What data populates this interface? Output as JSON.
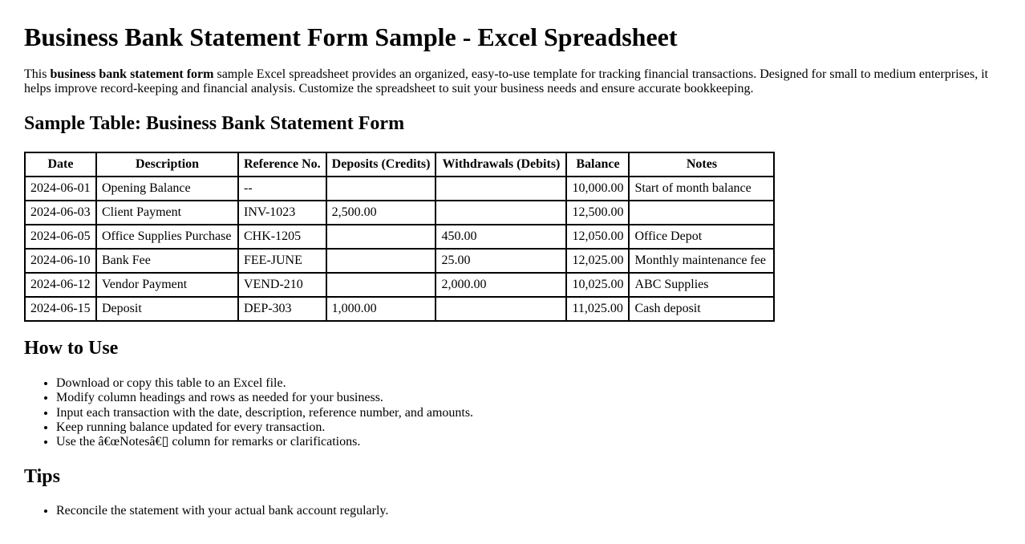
{
  "page_title": "Business Bank Statement Form Sample - Excel Spreadsheet",
  "intro": {
    "pre": "This ",
    "bold": "business bank statement form",
    "post": " sample Excel spreadsheet provides an organized, easy-to-use template for tracking financial transactions. Designed for small to medium enterprises, it helps improve record-keeping and financial analysis. Customize the spreadsheet to suit your business needs and ensure accurate bookkeeping."
  },
  "sample_table": {
    "heading": "Sample Table: Business Bank Statement Form",
    "columns": [
      "Date",
      "Description",
      "Reference No.",
      "Deposits (Credits)",
      "Withdrawals (Debits)",
      "Balance",
      "Notes"
    ],
    "rows": [
      [
        "2024-06-01",
        "Opening Balance",
        "--",
        "",
        "",
        "10,000.00",
        "Start of month balance"
      ],
      [
        "2024-06-03",
        "Client Payment",
        "INV-1023",
        "2,500.00",
        "",
        "12,500.00",
        ""
      ],
      [
        "2024-06-05",
        "Office Supplies Purchase",
        "CHK-1205",
        "",
        "450.00",
        "12,050.00",
        "Office Depot"
      ],
      [
        "2024-06-10",
        "Bank Fee",
        "FEE-JUNE",
        "",
        "25.00",
        "12,025.00",
        "Monthly maintenance fee"
      ],
      [
        "2024-06-12",
        "Vendor Payment",
        "VEND-210",
        "",
        "2,000.00",
        "10,025.00",
        "ABC Supplies"
      ],
      [
        "2024-06-15",
        "Deposit",
        "DEP-303",
        "1,000.00",
        "",
        "11,025.00",
        "Cash deposit"
      ]
    ]
  },
  "how_to_use": {
    "heading": "How to Use",
    "items": [
      "Download or copy this table to an Excel file.",
      "Modify column headings and rows as needed for your business.",
      "Input each transaction with the date, description, reference number, and amounts.",
      "Keep running balance updated for every transaction.",
      "Use the â€œNotesâ€▯ column for remarks or clarifications."
    ]
  },
  "tips": {
    "heading": "Tips",
    "items": [
      "Reconcile the statement with your actual bank account regularly."
    ]
  },
  "colors": {
    "text": "#000000",
    "background": "#ffffff",
    "table_border": "#000000"
  }
}
